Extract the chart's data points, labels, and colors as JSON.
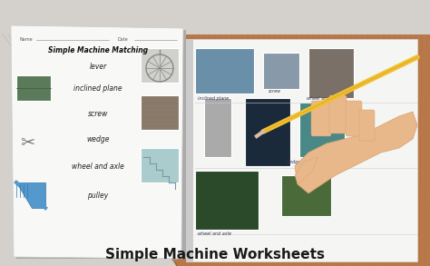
{
  "title": "Simple Machine Worksheets",
  "title_fontsize": 11,
  "title_color": "#1a1a1a",
  "bg_color": "#d4d0cc",
  "worksheet_bg": "#f8f8f6",
  "worksheet_shadow": "#bbbbbb",
  "worksheet_title": "Simple Machine Matching",
  "worksheet_items": [
    "lever",
    "inclined plane",
    "screw",
    "wedge",
    "wheel and axle",
    "pulley"
  ],
  "right_bg_top": "#c8a882",
  "right_bg_wood": "#a0522d",
  "paper_bg": "#f5f5f3",
  "photo_colors": {
    "airplane": "#7a9ab0",
    "screw_top": "#8899aa",
    "ferris_top": "#888077",
    "pendulum": "#aaaaaa",
    "zipper": "#2a3a4a",
    "teal_box": "#5a9090",
    "roller": "#3a5a3a",
    "ramp": "#7a9a5a"
  },
  "hand_color": "#e8b88a",
  "pencil_color": "#f0c030",
  "name_line_color": "#888888",
  "item_font_size": 5.5,
  "worksheet_title_size": 5.5
}
